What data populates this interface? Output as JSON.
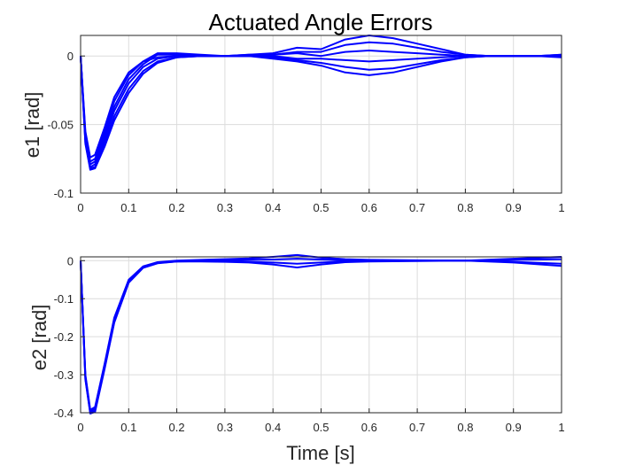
{
  "chart_data": [
    {
      "type": "line",
      "title": "Actuated Angle Errors",
      "xlabel": "",
      "ylabel": "e1 [rad]",
      "xlim": [
        0,
        1
      ],
      "ylim": [
        -0.1,
        0.015
      ],
      "xticks": [
        0,
        0.1,
        0.2,
        0.3,
        0.4,
        0.5,
        0.6,
        0.7,
        0.8,
        0.9,
        1
      ],
      "xticklabels": [
        "0",
        "0.1",
        "0.2",
        "0.3",
        "0.4",
        "0.5",
        "0.6",
        "0.7",
        "0.8",
        "0.9",
        "1"
      ],
      "yticks": [
        0,
        -0.05,
        -0.1
      ],
      "yticklabels": [
        "0",
        "-0.05",
        "-0.1"
      ],
      "grid": true,
      "color": "#0000ff",
      "series": [
        {
          "x": [
            0,
            0.01,
            0.02,
            0.03,
            0.05,
            0.07,
            0.1,
            0.13,
            0.16,
            0.2,
            0.25,
            0.3,
            0.35,
            0.4,
            0.45,
            0.5,
            0.55,
            0.6,
            0.65,
            0.7,
            0.75,
            0.8,
            0.85,
            0.9,
            0.95,
            1
          ],
          "values": [
            0,
            -0.055,
            -0.074,
            -0.072,
            -0.052,
            -0.03,
            -0.012,
            -0.004,
            -0.001,
            0,
            0,
            0,
            0.001,
            0.002,
            0.006,
            0.005,
            0.012,
            0.015,
            0.013,
            0.009,
            0.005,
            0.001,
            0,
            0,
            0,
            0
          ]
        },
        {
          "x": [
            0,
            0.01,
            0.02,
            0.03,
            0.05,
            0.07,
            0.1,
            0.13,
            0.16,
            0.2,
            0.25,
            0.3,
            0.35,
            0.4,
            0.45,
            0.5,
            0.55,
            0.6,
            0.65,
            0.7,
            0.75,
            0.8,
            0.85,
            0.9,
            0.95,
            1
          ],
          "values": [
            0,
            -0.057,
            -0.077,
            -0.075,
            -0.055,
            -0.033,
            -0.014,
            -0.004,
            0.002,
            0.002,
            0.001,
            0,
            0.001,
            0.001,
            0.003,
            0.003,
            0.008,
            0.01,
            0.009,
            0.006,
            0.003,
            0.001,
            0,
            0,
            0,
            0.001
          ]
        },
        {
          "x": [
            0,
            0.01,
            0.02,
            0.03,
            0.05,
            0.07,
            0.1,
            0.13,
            0.16,
            0.2,
            0.25,
            0.3,
            0.35,
            0.4,
            0.45,
            0.5,
            0.55,
            0.6,
            0.65,
            0.7,
            0.75,
            0.8,
            0.85,
            0.9,
            0.95,
            1
          ],
          "values": [
            0,
            -0.059,
            -0.079,
            -0.077,
            -0.058,
            -0.037,
            -0.017,
            -0.006,
            0.001,
            0.001,
            0,
            0,
            0,
            0.001,
            0.002,
            0,
            0.003,
            0.004,
            0.003,
            0.002,
            0.001,
            0,
            0,
            0,
            0,
            0
          ]
        },
        {
          "x": [
            0,
            0.01,
            0.02,
            0.03,
            0.05,
            0.07,
            0.1,
            0.13,
            0.16,
            0.2,
            0.25,
            0.3,
            0.35,
            0.4,
            0.45,
            0.5,
            0.55,
            0.6,
            0.65,
            0.7,
            0.75,
            0.8,
            0.85,
            0.9,
            0.95,
            1
          ],
          "values": [
            0,
            -0.061,
            -0.081,
            -0.079,
            -0.061,
            -0.04,
            -0.02,
            -0.008,
            -0.002,
            0,
            0,
            0,
            0,
            0,
            -0.002,
            -0.002,
            -0.003,
            -0.004,
            -0.003,
            -0.002,
            -0.001,
            0,
            0,
            0,
            0,
            -0.001
          ]
        },
        {
          "x": [
            0,
            0.01,
            0.02,
            0.03,
            0.05,
            0.07,
            0.1,
            0.13,
            0.16,
            0.2,
            0.25,
            0.3,
            0.35,
            0.4,
            0.45,
            0.5,
            0.55,
            0.6,
            0.65,
            0.7,
            0.75,
            0.8,
            0.85,
            0.9,
            0.95,
            1
          ],
          "values": [
            0,
            -0.063,
            -0.082,
            -0.081,
            -0.064,
            -0.044,
            -0.024,
            -0.011,
            -0.004,
            -0.001,
            0,
            0,
            0,
            -0.001,
            -0.003,
            -0.005,
            -0.008,
            -0.01,
            -0.009,
            -0.006,
            -0.003,
            -0.001,
            0,
            0,
            0,
            0.001
          ]
        },
        {
          "x": [
            0,
            0.01,
            0.02,
            0.03,
            0.05,
            0.07,
            0.1,
            0.13,
            0.16,
            0.2,
            0.25,
            0.3,
            0.35,
            0.4,
            0.45,
            0.5,
            0.55,
            0.6,
            0.65,
            0.7,
            0.75,
            0.8,
            0.85,
            0.9,
            0.95,
            1
          ],
          "values": [
            0,
            -0.064,
            -0.083,
            -0.082,
            -0.066,
            -0.047,
            -0.027,
            -0.013,
            -0.005,
            -0.001,
            0,
            0,
            0,
            -0.002,
            -0.004,
            -0.007,
            -0.012,
            -0.014,
            -0.012,
            -0.008,
            -0.004,
            -0.001,
            0,
            0,
            0,
            0
          ]
        }
      ]
    },
    {
      "type": "line",
      "title": "",
      "xlabel": "Time [s]",
      "ylabel": "e2 [rad]",
      "xlim": [
        0,
        1
      ],
      "ylim": [
        -0.4,
        0.01
      ],
      "xticks": [
        0,
        0.1,
        0.2,
        0.3,
        0.4,
        0.5,
        0.6,
        0.7,
        0.8,
        0.9,
        1
      ],
      "xticklabels": [
        "0",
        "0.1",
        "0.2",
        "0.3",
        "0.4",
        "0.5",
        "0.6",
        "0.7",
        "0.8",
        "0.9",
        "1"
      ],
      "yticks": [
        0,
        -0.1,
        -0.2,
        -0.3,
        -0.4
      ],
      "yticklabels": [
        "0",
        "-0.1",
        "-0.2",
        "-0.3",
        "-0.4"
      ],
      "grid": true,
      "color": "#0000ff",
      "series": [
        {
          "x": [
            0,
            0.01,
            0.02,
            0.03,
            0.05,
            0.07,
            0.1,
            0.13,
            0.16,
            0.2,
            0.25,
            0.3,
            0.35,
            0.4,
            0.45,
            0.5,
            0.55,
            0.6,
            0.7,
            0.8,
            0.9,
            1
          ],
          "values": [
            0,
            -0.3,
            -0.392,
            -0.385,
            -0.27,
            -0.15,
            -0.05,
            -0.015,
            -0.004,
            0,
            0.002,
            0.004,
            0.006,
            0.01,
            0.015,
            0.008,
            0.004,
            0.002,
            0.001,
            0,
            0.005,
            0.01
          ]
        },
        {
          "x": [
            0,
            0.01,
            0.02,
            0.03,
            0.05,
            0.07,
            0.1,
            0.13,
            0.16,
            0.2,
            0.25,
            0.3,
            0.35,
            0.4,
            0.45,
            0.5,
            0.55,
            0.6,
            0.7,
            0.8,
            0.9,
            1
          ],
          "values": [
            0,
            -0.305,
            -0.396,
            -0.39,
            -0.275,
            -0.155,
            -0.053,
            -0.016,
            -0.005,
            -0.001,
            0,
            0.001,
            0.002,
            0.003,
            0.005,
            0.003,
            0.001,
            0,
            0,
            0,
            0.002,
            0.004
          ]
        },
        {
          "x": [
            0,
            0.01,
            0.02,
            0.03,
            0.05,
            0.07,
            0.1,
            0.13,
            0.16,
            0.2,
            0.25,
            0.3,
            0.35,
            0.4,
            0.45,
            0.5,
            0.55,
            0.6,
            0.7,
            0.8,
            0.9,
            1
          ],
          "values": [
            0,
            -0.31,
            -0.4,
            -0.395,
            -0.28,
            -0.16,
            -0.056,
            -0.018,
            -0.006,
            -0.002,
            -0.001,
            -0.002,
            -0.003,
            -0.005,
            -0.008,
            -0.005,
            -0.002,
            -0.001,
            0,
            0,
            -0.003,
            -0.008
          ]
        },
        {
          "x": [
            0,
            0.01,
            0.02,
            0.03,
            0.05,
            0.07,
            0.1,
            0.13,
            0.16,
            0.2,
            0.25,
            0.3,
            0.35,
            0.4,
            0.45,
            0.5,
            0.55,
            0.6,
            0.7,
            0.8,
            0.9,
            1
          ],
          "values": [
            0,
            -0.313,
            -0.402,
            -0.398,
            -0.284,
            -0.163,
            -0.058,
            -0.019,
            -0.007,
            -0.002,
            -0.002,
            -0.003,
            -0.005,
            -0.01,
            -0.018,
            -0.01,
            -0.004,
            -0.002,
            -0.001,
            0,
            -0.005,
            -0.014
          ]
        }
      ]
    }
  ]
}
